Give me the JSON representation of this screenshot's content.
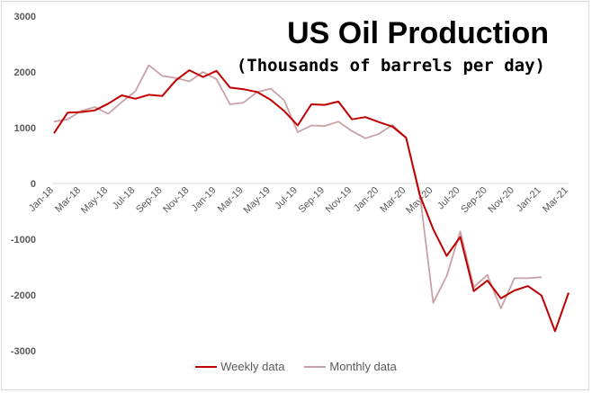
{
  "chart_data": {
    "type": "line",
    "title": "US Oil Production",
    "subtitle": "(Thousands of barrels per day)",
    "xlabel": "",
    "ylabel": "",
    "ylim": [
      -3000,
      3000
    ],
    "y_ticks": [
      "3000",
      "2000",
      "1000",
      "0",
      "-1000",
      "-2000",
      "-3000"
    ],
    "y_tick_values": [
      3000,
      2000,
      1000,
      0,
      -1000,
      -2000,
      -3000
    ],
    "categories": [
      "Jan-18",
      "Feb-18",
      "Mar-18",
      "Apr-18",
      "May-18",
      "Jun-18",
      "Jul-18",
      "Aug-18",
      "Sep-18",
      "Oct-18",
      "Nov-18",
      "Dec-18",
      "Jan-19",
      "Feb-19",
      "Mar-19",
      "Apr-19",
      "May-19",
      "Jun-19",
      "Jul-19",
      "Aug-19",
      "Sep-19",
      "Oct-19",
      "Nov-19",
      "Dec-19",
      "Jan-20",
      "Feb-20",
      "Mar-20",
      "Apr-20",
      "May-20",
      "Jun-20",
      "Jul-20",
      "Aug-20",
      "Sep-20",
      "Oct-20",
      "Nov-20",
      "Dec-20",
      "Jan-21",
      "Feb-21",
      "Mar-21"
    ],
    "x_tick_labels": [
      "Jan-18",
      "Mar-18",
      "May-18",
      "Jul-18",
      "Sep-18",
      "Nov-18",
      "Jan-19",
      "Mar-19",
      "May-19",
      "Jul-19",
      "Sep-19",
      "Nov-19",
      "Jan-20",
      "Mar-20",
      "May-20",
      "Jul-20",
      "Sep-20",
      "Nov-20",
      "Jan-21",
      "Mar-21"
    ],
    "grid": false,
    "legend_position": "bottom",
    "series": [
      {
        "name": "Weekly data",
        "color": "#c00000",
        "x": [
          0,
          1,
          2,
          3,
          4,
          5,
          6,
          7,
          8,
          9,
          10,
          11,
          12,
          13,
          14,
          15,
          16,
          17,
          18,
          19,
          20,
          21,
          22,
          23,
          24,
          25,
          26,
          27,
          28,
          29,
          30,
          31,
          32,
          33,
          34,
          35,
          36,
          37,
          38
        ],
        "values": [
          900,
          1270,
          1280,
          1310,
          1430,
          1580,
          1520,
          1590,
          1570,
          1850,
          2030,
          1910,
          2020,
          1720,
          1690,
          1640,
          1500,
          1300,
          1040,
          1420,
          1410,
          1470,
          1150,
          1190,
          1100,
          1020,
          820,
          -200,
          -820,
          -1300,
          -960,
          -1930,
          -1740,
          -2060,
          -1920,
          -1840,
          -2010,
          -2650,
          -1960
        ]
      },
      {
        "name": "Monthly data",
        "color": "#c9a1a6",
        "x": [
          0,
          1,
          2,
          3,
          4,
          5,
          6,
          7,
          8,
          9,
          10,
          11,
          12,
          13,
          14,
          15,
          16,
          17,
          18,
          19,
          20,
          21,
          22,
          23,
          24,
          25,
          26,
          27,
          28,
          29,
          30,
          31,
          32,
          33,
          34,
          35,
          36
        ],
        "values": [
          1110,
          1150,
          1300,
          1370,
          1250,
          1460,
          1650,
          2120,
          1930,
          1890,
          1830,
          2000,
          1870,
          1420,
          1450,
          1640,
          1700,
          1490,
          920,
          1040,
          1030,
          1110,
          940,
          810,
          890,
          1050,
          820,
          -160,
          -2140,
          -1660,
          -860,
          -1860,
          -1640,
          -2240,
          -1700,
          -1700,
          -1680
        ]
      }
    ]
  }
}
